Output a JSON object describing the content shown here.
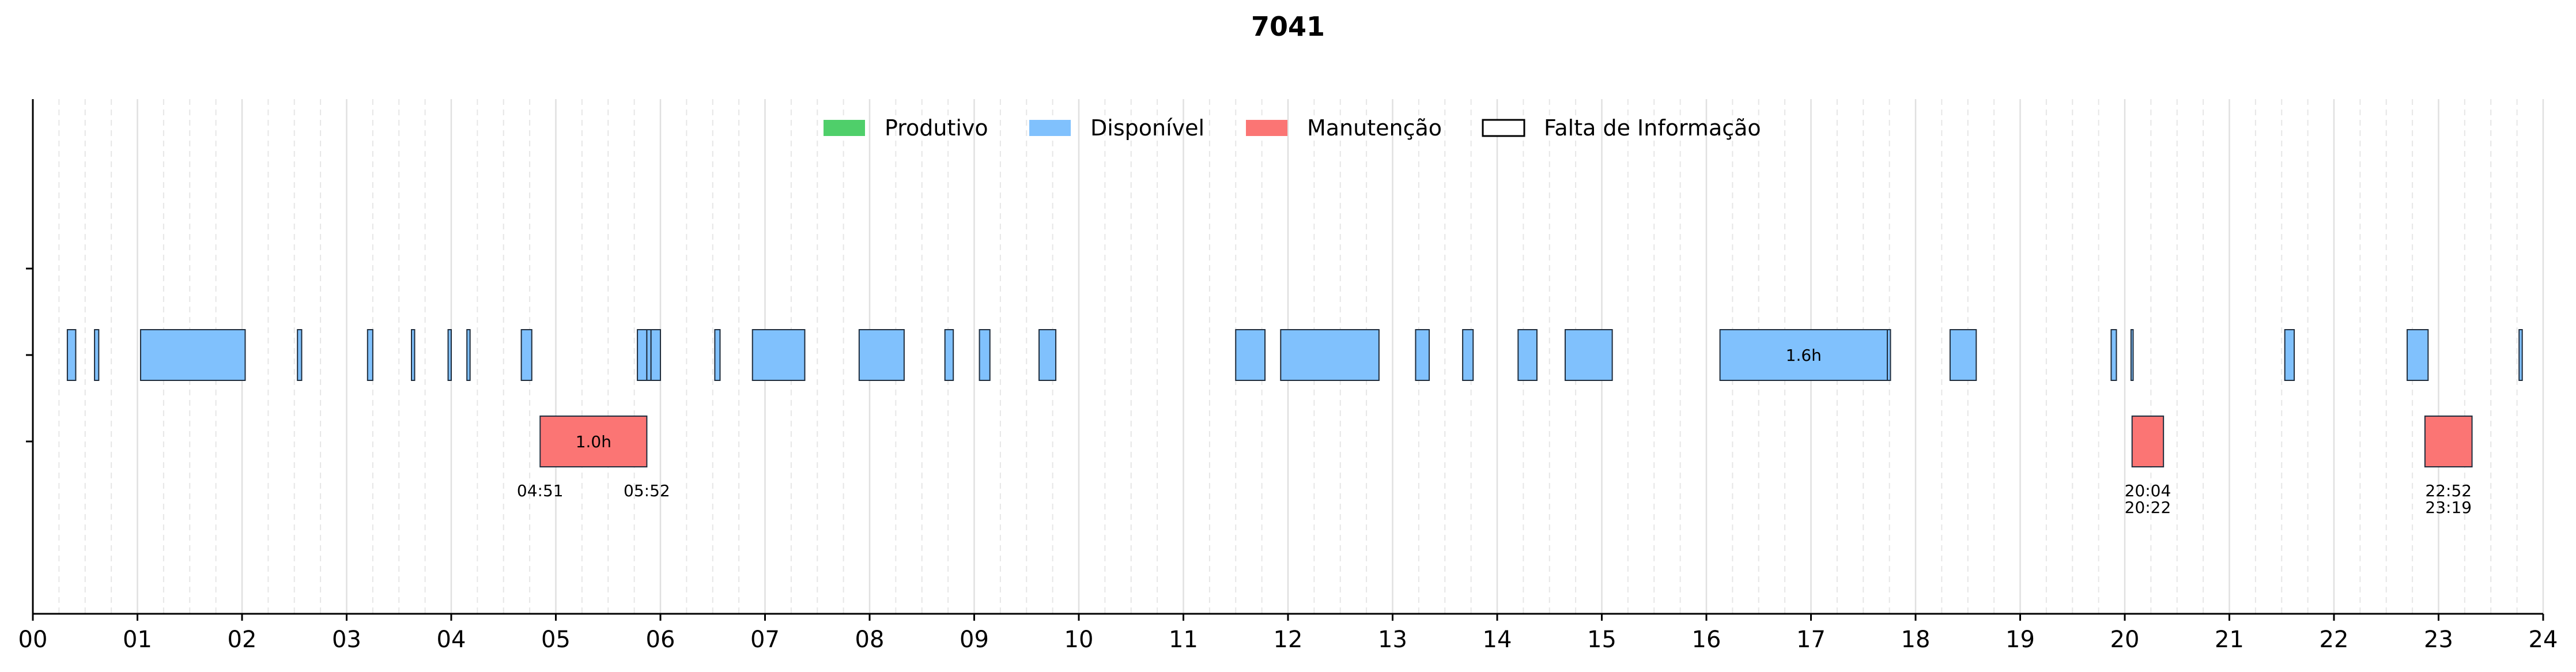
{
  "chart_data": {
    "type": "timeline",
    "title": "7041",
    "xlabel": "",
    "ylabel": "",
    "xlim": [
      0,
      24
    ],
    "x_ticks": [
      "00",
      "01",
      "02",
      "03",
      "04",
      "05",
      "06",
      "07",
      "08",
      "09",
      "10",
      "11",
      "12",
      "13",
      "14",
      "15",
      "16",
      "17",
      "18",
      "19",
      "20",
      "21",
      "22",
      "23",
      "24"
    ],
    "grid": true,
    "minor_grid": true,
    "legend_position": "top-center",
    "legend": [
      {
        "name": "Produtivo",
        "color": "#4fcf6a",
        "filled": true
      },
      {
        "name": "Disponível",
        "color": "#80c1fd",
        "filled": true
      },
      {
        "name": "Manutenção",
        "color": "#fb7574",
        "filled": true
      },
      {
        "name": "Falta de Informação",
        "color": "#ffffff",
        "filled": false
      }
    ],
    "rows": [
      {
        "category": "Disponível",
        "color": "#80c1fd",
        "intervals": [
          [
            0.33,
            0.41
          ],
          [
            0.59,
            0.63
          ],
          [
            1.03,
            2.03
          ],
          [
            2.53,
            2.57
          ],
          [
            3.2,
            3.25
          ],
          [
            3.62,
            3.65
          ],
          [
            3.97,
            4.0
          ],
          [
            4.15,
            4.18
          ],
          [
            4.67,
            4.77
          ],
          [
            5.78,
            5.87
          ],
          [
            5.87,
            5.91
          ],
          [
            5.91,
            6.0
          ],
          [
            6.52,
            6.57
          ],
          [
            6.88,
            7.38
          ],
          [
            7.9,
            8.33
          ],
          [
            8.72,
            8.8
          ],
          [
            9.05,
            9.15
          ],
          [
            9.62,
            9.78
          ],
          [
            11.5,
            11.78
          ],
          [
            11.93,
            12.87
          ],
          [
            13.22,
            13.35
          ],
          [
            13.67,
            13.77
          ],
          [
            14.2,
            14.38
          ],
          [
            14.65,
            15.1
          ],
          [
            16.13,
            17.73
          ],
          [
            17.73,
            17.76
          ],
          [
            18.33,
            18.58
          ],
          [
            19.87,
            19.92
          ],
          [
            20.06,
            20.08
          ],
          [
            21.53,
            21.62
          ],
          [
            22.7,
            22.9
          ],
          [
            23.77,
            23.8
          ]
        ],
        "labels": [
          {
            "interval": [
              16.13,
              17.73
            ],
            "text": "1.6h"
          }
        ]
      },
      {
        "category": "Manutenção",
        "color": "#fb7574",
        "intervals": [
          [
            4.85,
            5.87
          ],
          [
            20.07,
            20.37
          ],
          [
            22.87,
            23.32
          ]
        ],
        "labels": [
          {
            "interval": [
              4.85,
              5.87
            ],
            "text": "1.0h",
            "start": "04:51",
            "end": "05:52"
          },
          {
            "interval": [
              20.07,
              20.37
            ],
            "start": "20:04",
            "end": "20:22"
          },
          {
            "interval": [
              22.87,
              23.32
            ],
            "start": "22:52",
            "end": "23:19"
          }
        ]
      }
    ]
  }
}
